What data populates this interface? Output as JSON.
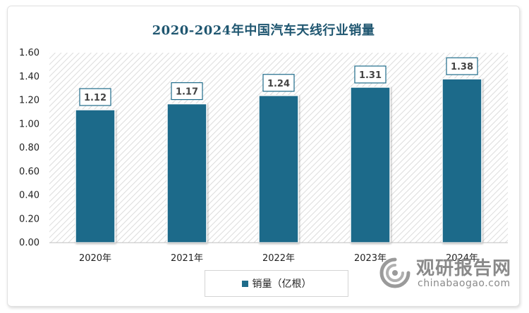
{
  "chart_data": {
    "type": "bar",
    "title": "2020-2024年中国汽车天线行业销量",
    "categories": [
      "2020年",
      "2021年",
      "2022年",
      "2023年",
      "2024年"
    ],
    "series": [
      {
        "name": "销量（亿根）",
        "values": [
          1.12,
          1.17,
          1.24,
          1.31,
          1.38
        ],
        "color": "#1e6b8a"
      }
    ],
    "ylim": [
      0,
      1.6
    ],
    "yticks": [
      "0.00",
      "0.20",
      "0.40",
      "0.60",
      "0.80",
      "1.00",
      "1.20",
      "1.40",
      "1.60"
    ],
    "data_labels": [
      "1.12",
      "1.17",
      "1.24",
      "1.31",
      "1.38"
    ],
    "legend_position": "bottom",
    "grid": false,
    "plot_background": "hatched"
  },
  "legend": {
    "label": "销量（亿根）"
  },
  "watermark": {
    "cn": "观研报告网",
    "en": "chinabaogao.com"
  }
}
